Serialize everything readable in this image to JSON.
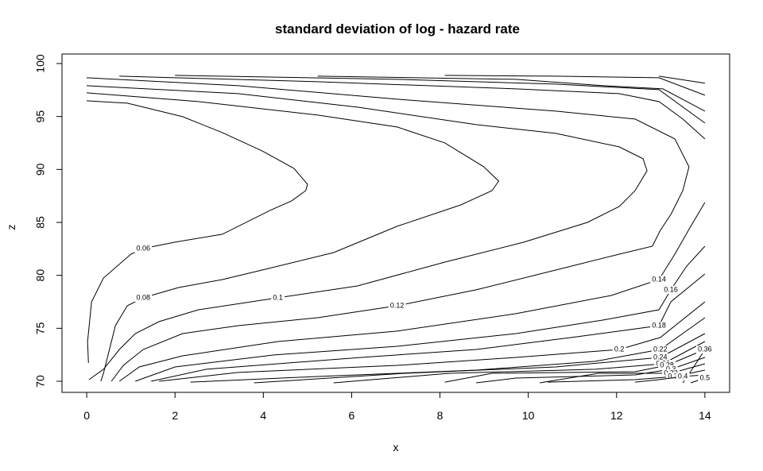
{
  "chart_data": {
    "type": "contour",
    "title": "standard deviation of log - hazard rate",
    "x_label": "x",
    "y_label": "z",
    "color": "#000000",
    "xlim": [
      -0.56,
      14.56
    ],
    "ylim": [
      68.95,
      100.9
    ],
    "xticks": [
      0,
      2,
      4,
      6,
      8,
      10,
      12,
      14
    ],
    "yticks": [
      70,
      75,
      80,
      85,
      90,
      95,
      100
    ],
    "series": [
      {
        "name": "0.06",
        "x": [
          0,
          0.92,
          2.17,
          3.07,
          3.97,
          4.69,
          5.0,
          4.96,
          4.64,
          4.15,
          3.07,
          2.0,
          1.28,
          1.0,
          0.38,
          0.11,
          0.02,
          0.04
        ],
        "y": [
          96.48,
          96.26,
          94.98,
          93.48,
          91.76,
          90.11,
          88.6,
          88.0,
          87.03,
          86.13,
          83.88,
          83.13,
          82.53,
          82.0,
          79.75,
          77.5,
          73.75,
          71.73
        ]
      },
      {
        "name": "0.08",
        "x": [
          0,
          2.53,
          5.23,
          7.03,
          8.11,
          8.99,
          9.33,
          9.18,
          8.47,
          7.03,
          5.59,
          3.97,
          3.07,
          2.08,
          1.28,
          0.92,
          0.65,
          0.47,
          0.38,
          0.32
        ],
        "y": [
          97.23,
          96.41,
          95.13,
          94.01,
          92.51,
          90.26,
          88.9,
          88.0,
          86.65,
          84.63,
          82.15,
          80.5,
          79.6,
          78.85,
          77.88,
          77.13,
          75.25,
          72.25,
          70.75,
          70.0
        ]
      },
      {
        "name": "0.1",
        "x": [
          0,
          3.43,
          6.13,
          8.82,
          10.62,
          12.06,
          12.6,
          12.69,
          12.42,
          12.06,
          11.34,
          9.9,
          8.11,
          6.13,
          4.33,
          2.53,
          1.64,
          1.1,
          0.74,
          0.38,
          0.05
        ],
        "y": [
          97.91,
          97.16,
          95.88,
          94.23,
          93.41,
          92.13,
          91.01,
          89.88,
          88.0,
          86.5,
          85.0,
          83.13,
          81.25,
          79.0,
          77.88,
          76.75,
          75.63,
          74.5,
          73.0,
          71.13,
          70.15
        ]
      },
      {
        "name": "0.12",
        "x": [
          0,
          3.43,
          7.03,
          10.62,
          12.42,
          13.32,
          13.64,
          13.5,
          13.23,
          12.99,
          12.81,
          12.06,
          10.62,
          8.82,
          7.03,
          5.23,
          3.43,
          2.17,
          1.28,
          0.83,
          0.56
        ],
        "y": [
          98.66,
          97.91,
          96.63,
          95.51,
          94.76,
          92.88,
          90.26,
          88.0,
          85.75,
          84.25,
          82.75,
          82.0,
          80.5,
          78.63,
          77.13,
          76.0,
          75.25,
          74.5,
          73.0,
          71.5,
          70.0
        ]
      },
      {
        "name": "0.14",
        "x": [
          0.74,
          1.19,
          2.17,
          4.33,
          7.03,
          9.72,
          11.88,
          12.96,
          13.32,
          13.68,
          14.0,
          null,
          0.74,
          5.23,
          9.72,
          12.06,
          12.96,
          13.5,
          14.0
        ],
        "y": [
          70.0,
          71.35,
          72.4,
          73.75,
          74.73,
          76.38,
          78.1,
          79.6,
          82.0,
          84.63,
          86.88,
          null,
          98.81,
          98.28,
          97.61,
          97.16,
          96.41,
          94.76,
          92.88
        ]
      },
      {
        "name": "0.16",
        "x": [
          1.1,
          2.0,
          4.24,
          7.03,
          9.72,
          11.7,
          12.96,
          13.23,
          13.59,
          14.0,
          null,
          2.0,
          7.03,
          10.62,
          12.96,
          14.0
        ],
        "y": [
          70.0,
          71.35,
          72.48,
          73.3,
          74.5,
          75.78,
          76.75,
          78.63,
          80.88,
          82.75,
          null,
          98.88,
          98.51,
          98.06,
          97.53,
          94.38
        ]
      },
      {
        "name": "0.18",
        "x": [
          1.46,
          2.71,
          6.22,
          8.82,
          10.98,
          12.96,
          13.23,
          14.0,
          null,
          5.23,
          9.72,
          11.7,
          13.05,
          14.0
        ],
        "y": [
          70.0,
          71.13,
          72.25,
          73.0,
          74.13,
          75.25,
          77.5,
          80.13,
          null,
          98.81,
          98.51,
          97.91,
          97.61,
          95.51
        ]
      },
      {
        "name": "0.2",
        "x": [
          1.64,
          3.43,
          7.03,
          9.72,
          12.06,
          12.99,
          14.0,
          null,
          8.11,
          10.62,
          12.96,
          14.0
        ],
        "y": [
          70.0,
          70.83,
          71.5,
          72.25,
          73.0,
          74.13,
          77.5,
          null,
          98.88,
          98.81,
          98.66,
          97.01
        ]
      },
      {
        "name": "0.22",
        "x": [
          2.35,
          5.23,
          8.82,
          11.52,
          12.99,
          14.0,
          null,
          12.96,
          14.0
        ],
        "y": [
          69.92,
          70.45,
          71.05,
          71.88,
          73.0,
          76.0,
          null,
          98.81,
          98.14
        ]
      },
      {
        "name": "0.24",
        "x": [
          3.79,
          7.21,
          10.62,
          12.99,
          14.0
        ],
        "y": [
          69.85,
          70.75,
          71.35,
          72.25,
          74.5
        ]
      },
      {
        "name": "0.26",
        "x": [
          5.59,
          8.21,
          11.52,
          13.05,
          14.0
        ],
        "y": [
          69.85,
          70.75,
          71.13,
          71.65,
          73.75
        ]
      },
      {
        "name": "0.28",
        "x": [
          8.11,
          9.18,
          12.42,
          13.14,
          14.0
        ],
        "y": [
          69.92,
          70.75,
          70.9,
          71.5,
          73.0
        ]
      },
      {
        "name": "0.3",
        "x": [
          8.82,
          9.72,
          12.42,
          13.23,
          14.0
        ],
        "y": [
          69.85,
          70.3,
          70.6,
          71.13,
          72.25
        ]
      },
      {
        "name": "0.32",
        "x": [
          10.26,
          11.59,
          13.23,
          14.0
        ],
        "y": [
          69.85,
          70.75,
          70.75,
          71.65
        ]
      },
      {
        "name": "0.34",
        "x": [
          10.44,
          12.42,
          13.32,
          14.0
        ],
        "y": [
          69.92,
          70.15,
          70.45,
          71.05
        ]
      },
      {
        "name": "0.36",
        "x": [
          13.5,
          13.77,
          14.0
        ],
        "y": [
          69.85,
          71.5,
          73.0
        ]
      },
      {
        "name": "0.4",
        "x": [
          12.42,
          12.96,
          13.5,
          14.0
        ],
        "y": [
          69.92,
          70.15,
          70.45,
          70.6
        ]
      },
      {
        "name": "0.5",
        "x": [
          13.68,
          14.0
        ],
        "y": [
          69.85,
          70.3
        ]
      }
    ]
  }
}
